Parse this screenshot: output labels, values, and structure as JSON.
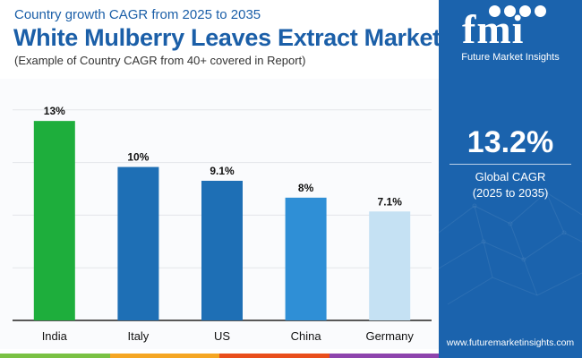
{
  "header": {
    "subtitle_top": "Country growth CAGR from 2025 to 2035",
    "title": "White Mulberry Leaves Extract Market",
    "note": "(Example of Country CAGR from 40+ covered in Report)"
  },
  "sidebar": {
    "logo_word": "fmi",
    "logo_tagline": "Future Market Insights",
    "cagr_value": "13.2%",
    "cagr_label": "Global CAGR",
    "cagr_period": "(2025 to 2035)",
    "website": "www.futuremarketinsights.com"
  },
  "colors": {
    "brand_blue": "#1b63ad",
    "footer": [
      "#7ac143",
      "#f5a623",
      "#e94e1b",
      "#8e44ad"
    ]
  },
  "chart_data": {
    "type": "bar",
    "title": "White Mulberry Leaves Extract Market",
    "categories": [
      "India",
      "Italy",
      "US",
      "China",
      "Germany"
    ],
    "values": [
      13,
      10,
      9.1,
      8,
      7.1
    ],
    "value_labels": [
      "13%",
      "10%",
      "9.1%",
      "8%",
      "7.1%"
    ],
    "bar_colors": [
      "#1eae3c",
      "#1e6fb5",
      "#1e6fb5",
      "#2f8fd6",
      "#c5e1f3"
    ],
    "ylim": [
      0,
      14
    ],
    "grid": true,
    "xlabel": "",
    "ylabel": ""
  }
}
